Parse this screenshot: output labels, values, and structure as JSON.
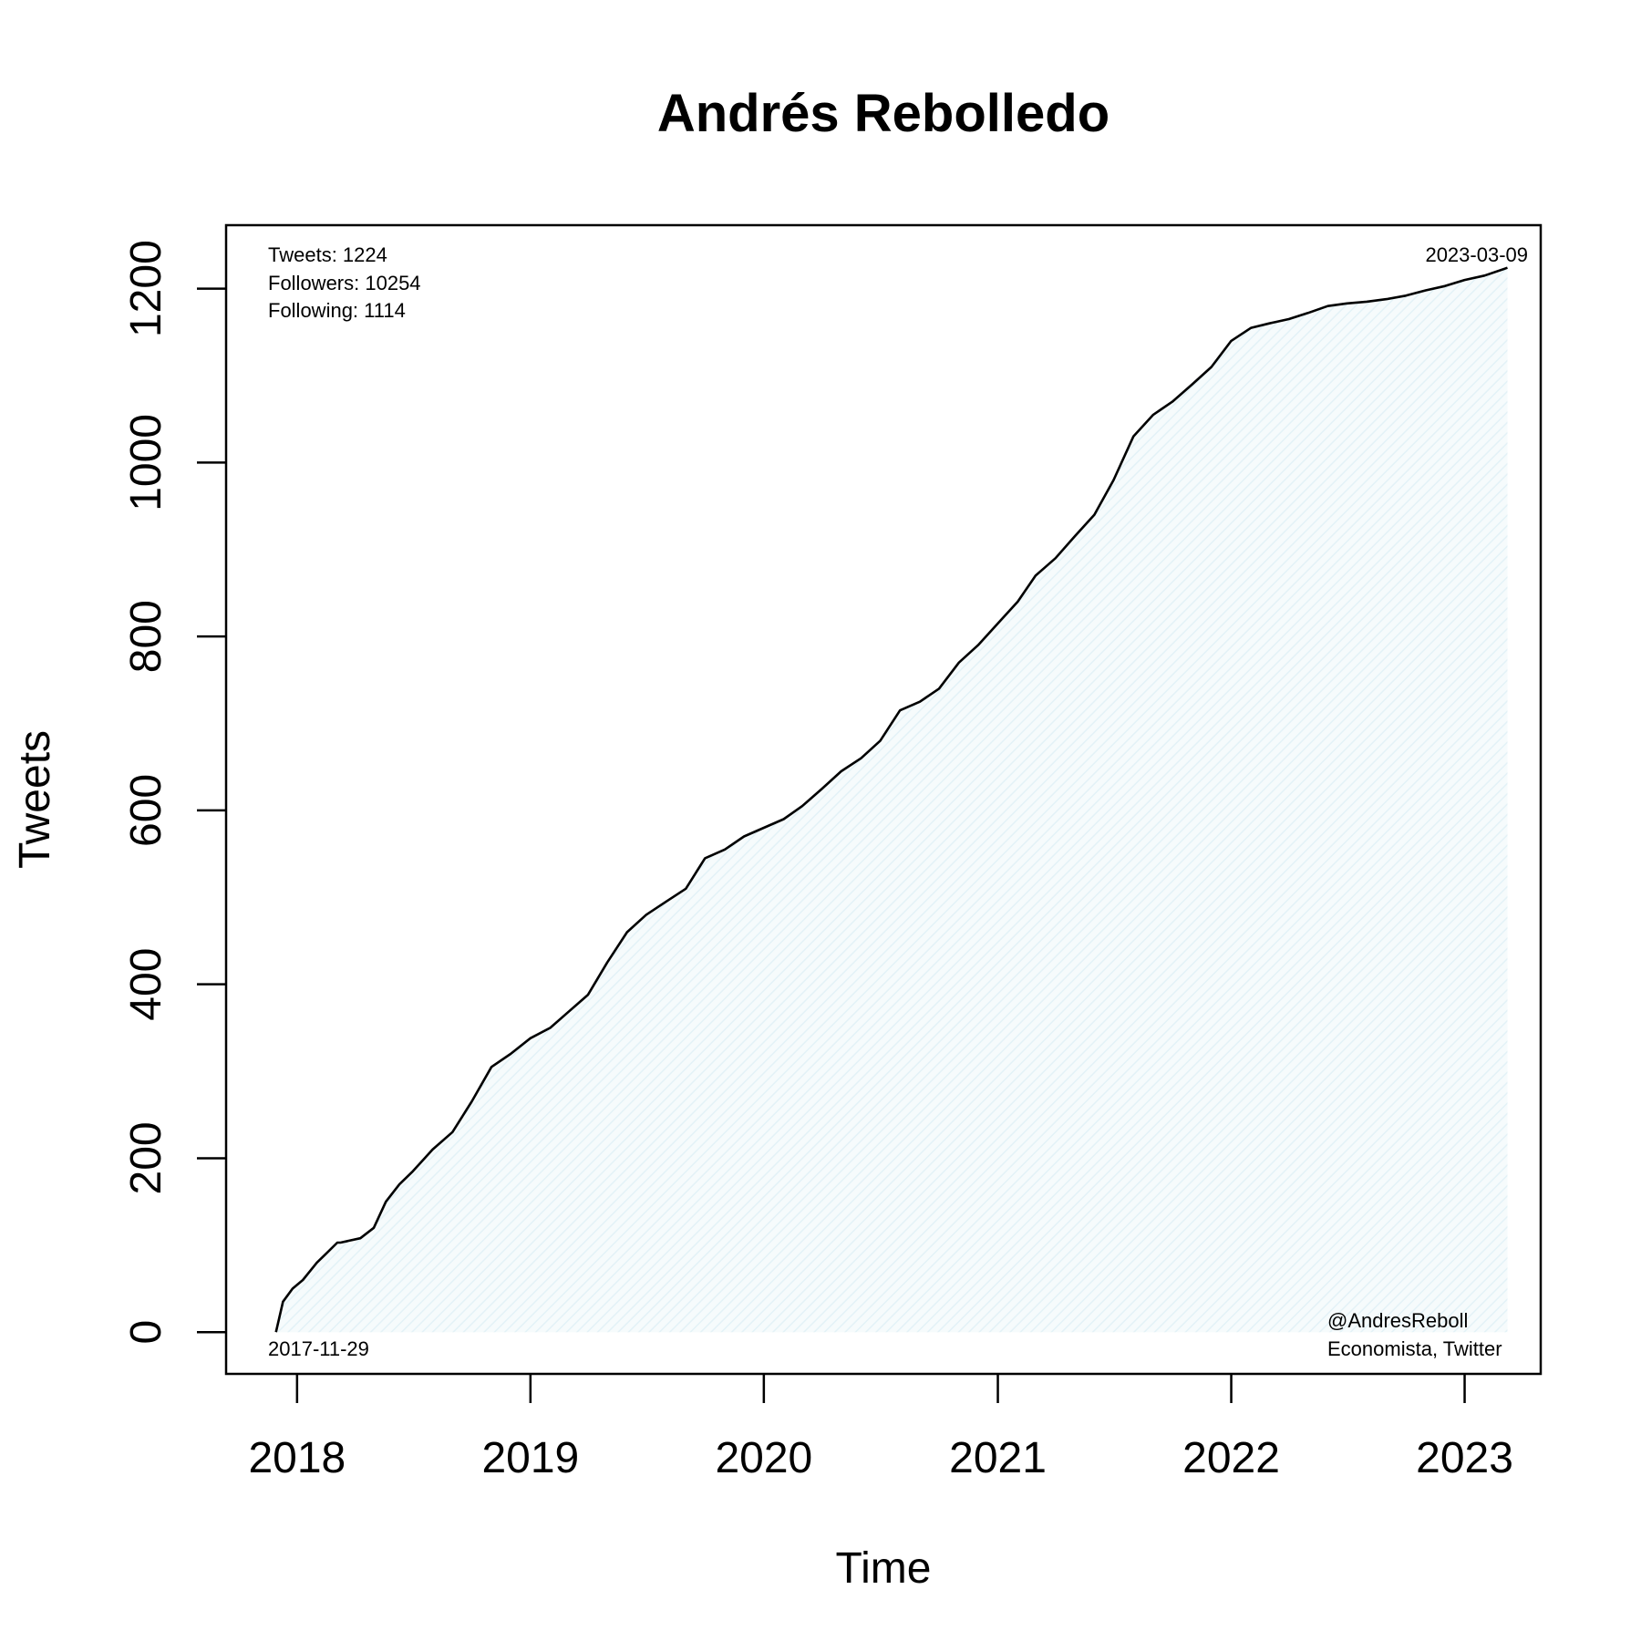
{
  "chart_data": {
    "type": "area",
    "title": "Andrés Rebolledo",
    "xlabel": "Time",
    "ylabel": "Tweets",
    "x_ticks": [
      "2018",
      "2019",
      "2020",
      "2021",
      "2022",
      "2023"
    ],
    "y_ticks": [
      "0",
      "200",
      "400",
      "600",
      "800",
      "1000",
      "1200"
    ],
    "xlim": [
      "2017-09-12",
      "2023-04-30"
    ],
    "ylim": [
      -48,
      1273
    ],
    "grid": false,
    "fill_color": "#dceef4",
    "line_color": "#000000",
    "stats": {
      "tweets": "Tweets: 1224",
      "followers": "Followers: 10254",
      "following": "Following: 1114"
    },
    "start_label": "2017-11-29",
    "end_label": "2023-03-09",
    "handle": "@AndresReboll",
    "bio": "Economista, Twitter",
    "series": [
      {
        "x": [
          "2017-11-29",
          "2017-12-10",
          "2017-12-25",
          "2018-01-10",
          "2018-02-01",
          "2018-02-15",
          "2018-03-05",
          "2018-03-10",
          "2018-04-10",
          "2018-05-01",
          "2018-05-20",
          "2018-06-10",
          "2018-07-01",
          "2018-08-01",
          "2018-09-01",
          "2018-10-01",
          "2018-11-01",
          "2018-12-01",
          "2019-01-01",
          "2019-02-01",
          "2019-03-01",
          "2019-04-01",
          "2019-05-01",
          "2019-06-01",
          "2019-07-01",
          "2019-08-01",
          "2019-09-01",
          "2019-10-01",
          "2019-11-01",
          "2019-12-01",
          "2020-01-01",
          "2020-02-01",
          "2020-03-01",
          "2020-04-01",
          "2020-05-01",
          "2020-06-01",
          "2020-07-01",
          "2020-08-01",
          "2020-09-01",
          "2020-10-01",
          "2020-11-01",
          "2020-12-01",
          "2021-01-01",
          "2021-02-01",
          "2021-03-01",
          "2021-04-01",
          "2021-05-01",
          "2021-06-01",
          "2021-07-01",
          "2021-08-01",
          "2021-09-01",
          "2021-10-01",
          "2021-11-01",
          "2021-12-01",
          "2022-01-01",
          "2022-02-01",
          "2022-03-01",
          "2022-04-01",
          "2022-05-01",
          "2022-06-01",
          "2022-07-01",
          "2022-08-01",
          "2022-09-01",
          "2022-10-01",
          "2022-11-01",
          "2022-12-01",
          "2023-01-01",
          "2023-02-01",
          "2023-03-09"
        ],
        "y": [
          0,
          35,
          50,
          60,
          80,
          90,
          103,
          103,
          108,
          120,
          150,
          170,
          185,
          210,
          230,
          265,
          305,
          320,
          338,
          350,
          368,
          388,
          425,
          460,
          480,
          495,
          510,
          545,
          555,
          570,
          580,
          590,
          605,
          625,
          645,
          660,
          680,
          715,
          725,
          740,
          770,
          790,
          815,
          840,
          870,
          890,
          915,
          940,
          980,
          1030,
          1055,
          1070,
          1090,
          1110,
          1140,
          1155,
          1160,
          1165,
          1172,
          1180,
          1183,
          1185,
          1188,
          1192,
          1198,
          1203,
          1210,
          1215,
          1224
        ]
      }
    ]
  }
}
